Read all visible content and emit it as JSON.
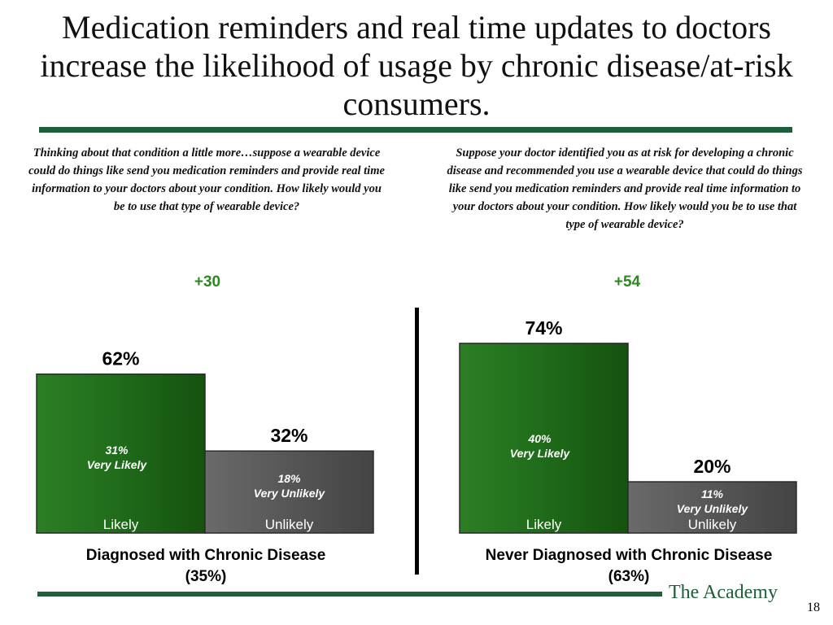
{
  "title": "Medication reminders and real time updates to doctors increase the likelihood of usage by chronic disease/at-risk consumers.",
  "brand": "The Academy",
  "page_number": "18",
  "questions": {
    "left": "Thinking about that condition a little more…suppose a wearable device could do things like send you medication reminders and provide real time information to your doctors about your condition. How likely would you be to use that type of wearable device?",
    "right": "Suppose your doctor identified you as at risk for developing a chronic disease and recommended you use a wearable device that could do things like send you medication reminders and provide real time information to your doctors about your condition. How likely would you be to use that type of wearable device?"
  },
  "colors": {
    "likely": "#1f6b1a",
    "unlikely": "#555555",
    "accent": "#1e5e3a",
    "net": "#2a8a1c"
  },
  "chart_data": [
    {
      "type": "bar",
      "group_label": "Diagnosed with Chronic Disease",
      "group_share": "(35%)",
      "net": "+30",
      "categories": [
        "Likely",
        "Unlikely"
      ],
      "values": [
        62,
        32
      ],
      "value_labels": [
        "62%",
        "32%"
      ],
      "sub_values": [
        31,
        18
      ],
      "sub_labels": [
        "31%",
        "18%"
      ],
      "sub_captions": [
        "Very Likely",
        "Very Unlikely"
      ],
      "ylim": [
        0,
        80
      ]
    },
    {
      "type": "bar",
      "group_label": "Never Diagnosed with Chronic Disease",
      "group_share": "(63%)",
      "net": "+54",
      "categories": [
        "Likely",
        "Unlikely"
      ],
      "values": [
        74,
        20
      ],
      "value_labels": [
        "74%",
        "20%"
      ],
      "sub_values": [
        40,
        11
      ],
      "sub_labels": [
        "40%",
        "11%"
      ],
      "sub_captions": [
        "Very Likely",
        "Very Unlikely"
      ],
      "ylim": [
        0,
        80
      ]
    }
  ]
}
